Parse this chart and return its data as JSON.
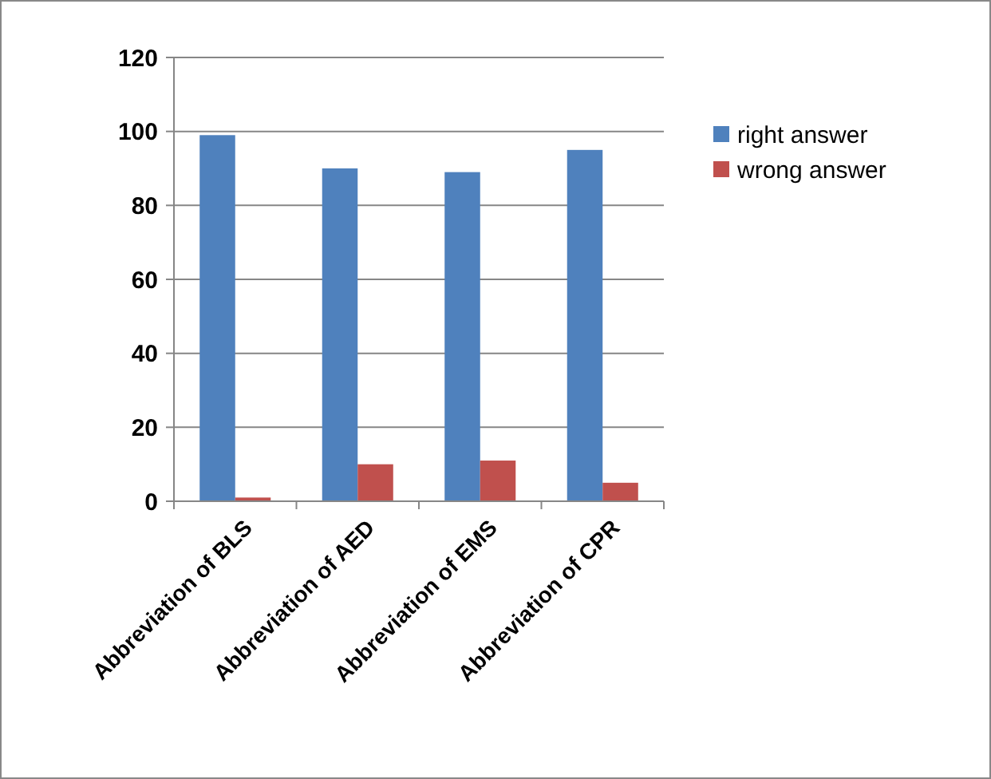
{
  "chart_data": {
    "type": "bar",
    "categories": [
      "Abbreviation of BLS",
      "Abbreviation of AED",
      "Abbreviation of EMS",
      "Abbreviation of CPR"
    ],
    "series": [
      {
        "name": "right answer",
        "color": "#4f81bd",
        "values": [
          99,
          90,
          89,
          95
        ]
      },
      {
        "name": "wrong answer",
        "color": "#c0504d",
        "values": [
          1,
          10,
          11,
          5
        ]
      }
    ],
    "ylim": [
      0,
      120
    ],
    "yticks": [
      0,
      20,
      40,
      60,
      80,
      100,
      120
    ],
    "grid": "y",
    "legend": "right"
  }
}
